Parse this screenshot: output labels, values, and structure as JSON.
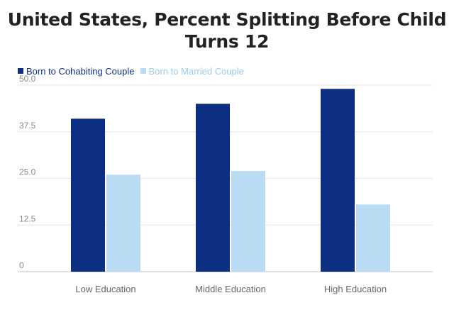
{
  "chart_data": {
    "type": "bar",
    "title": "United States, Percent Splitting Before Child Turns 12",
    "categories": [
      "Low Education",
      "Middle Education",
      "High Education"
    ],
    "series": [
      {
        "name": "Born to Cohabiting Couple",
        "color": "#0d2f82",
        "values": [
          41,
          45,
          49
        ]
      },
      {
        "name": "Born to Married Couple",
        "color": "#b9dbf4",
        "values": [
          26,
          27,
          18
        ]
      }
    ],
    "yticks": [
      "0",
      "12.5",
      "25.0",
      "37.5",
      "50.0"
    ],
    "ylim": [
      0,
      50
    ],
    "grid": true,
    "legend_position": "top-left"
  }
}
